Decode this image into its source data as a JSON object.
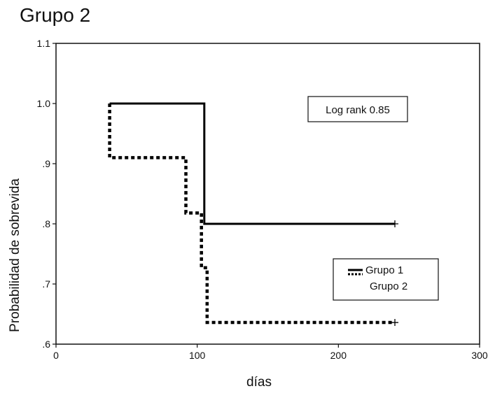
{
  "chart_data": {
    "type": "line",
    "step": true,
    "title": "Grupo 2",
    "xlabel": "días",
    "ylabel": "Probabilidad de sobrevida",
    "xlim": [
      0,
      300
    ],
    "ylim": [
      0.6,
      1.1
    ],
    "x_ticks": [
      0,
      100,
      200,
      300
    ],
    "x_tick_labels": [
      "0",
      "100",
      "200",
      "300"
    ],
    "y_ticks": [
      0.6,
      0.7,
      0.8,
      0.9,
      1.0,
      1.1
    ],
    "y_tick_labels": [
      ".6",
      ".7",
      ".8",
      ".9",
      "1.0",
      "1.1"
    ],
    "grid": false,
    "legend_position": "lower-right",
    "annotation": "Log rank 0.85",
    "series": [
      {
        "name": "Grupo 1",
        "style": "solid",
        "color": "#000000",
        "x": [
          38,
          105,
          105,
          240
        ],
        "y": [
          1.0,
          1.0,
          0.8,
          0.8
        ],
        "censored": [
          {
            "x": 240,
            "y": 0.8
          }
        ]
      },
      {
        "name": "Grupo 2",
        "style": "dotted",
        "color": "#000000",
        "x": [
          38,
          38,
          92,
          92,
          103,
          103,
          105,
          105,
          107,
          107,
          240
        ],
        "y": [
          1.0,
          0.91,
          0.91,
          0.818,
          0.818,
          0.727,
          0.727,
          0.727,
          0.727,
          0.636,
          0.636
        ],
        "censored": [
          {
            "x": 240,
            "y": 0.636
          }
        ]
      }
    ]
  }
}
